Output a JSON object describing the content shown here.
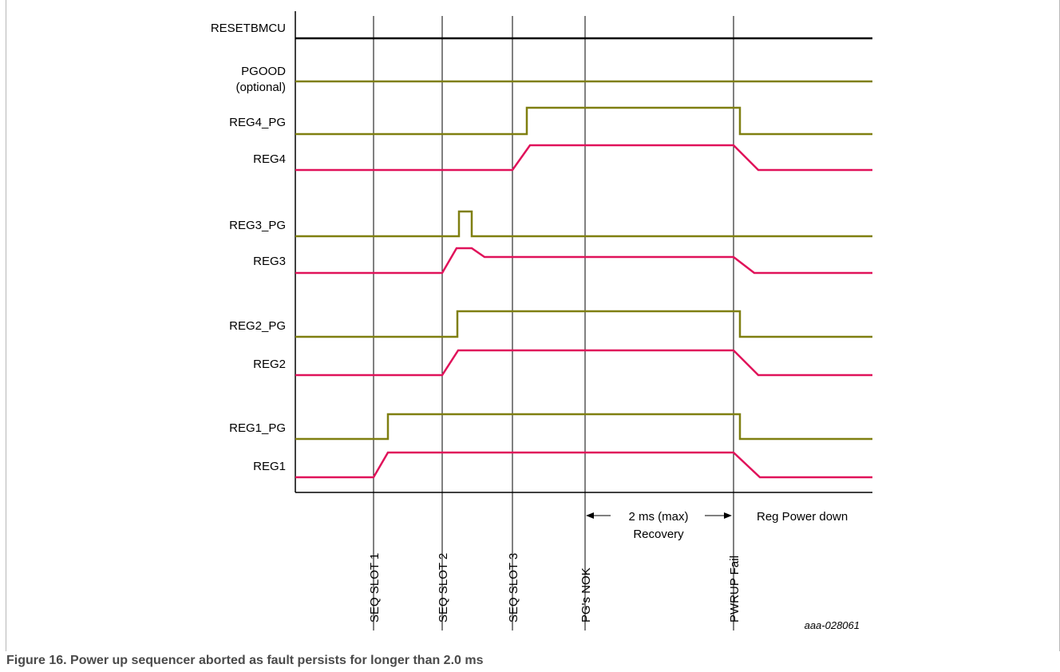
{
  "colors": {
    "pg": "#7f7f10",
    "reg": "#e0125a",
    "reset": "#000000",
    "axis": "#000000"
  },
  "signals": [
    {
      "id": "resetbmcu",
      "label": "RESETBMCU",
      "color": "reset"
    },
    {
      "id": "pgood",
      "label": "PGOOD",
      "label2": "(optional)",
      "color": "pg"
    },
    {
      "id": "reg4_pg",
      "label": "REG4_PG",
      "color": "pg"
    },
    {
      "id": "reg4",
      "label": "REG4",
      "color": "reg"
    },
    {
      "id": "reg3_pg",
      "label": "REG3_PG",
      "color": "pg"
    },
    {
      "id": "reg3",
      "label": "REG3",
      "color": "reg"
    },
    {
      "id": "reg2_pg",
      "label": "REG2_PG",
      "color": "pg"
    },
    {
      "id": "reg2",
      "label": "REG2",
      "color": "reg"
    },
    {
      "id": "reg1_pg",
      "label": "REG1_PG",
      "color": "pg"
    },
    {
      "id": "reg1",
      "label": "REG1",
      "color": "reg"
    }
  ],
  "markers": [
    "SEQ SLOT 1",
    "SEQ SLOT 2",
    "SEQ SLOT 3",
    "PG's NOK",
    "PWRUP Fail"
  ],
  "recovery": {
    "line1": "2 ms (max)",
    "line2": "Recovery"
  },
  "reg_power_down": "Reg Power down",
  "doc_id": "aaa-028061",
  "caption": "Figure 16.  Power up sequencer aborted as fault persists for longer than 2.0 ms"
}
